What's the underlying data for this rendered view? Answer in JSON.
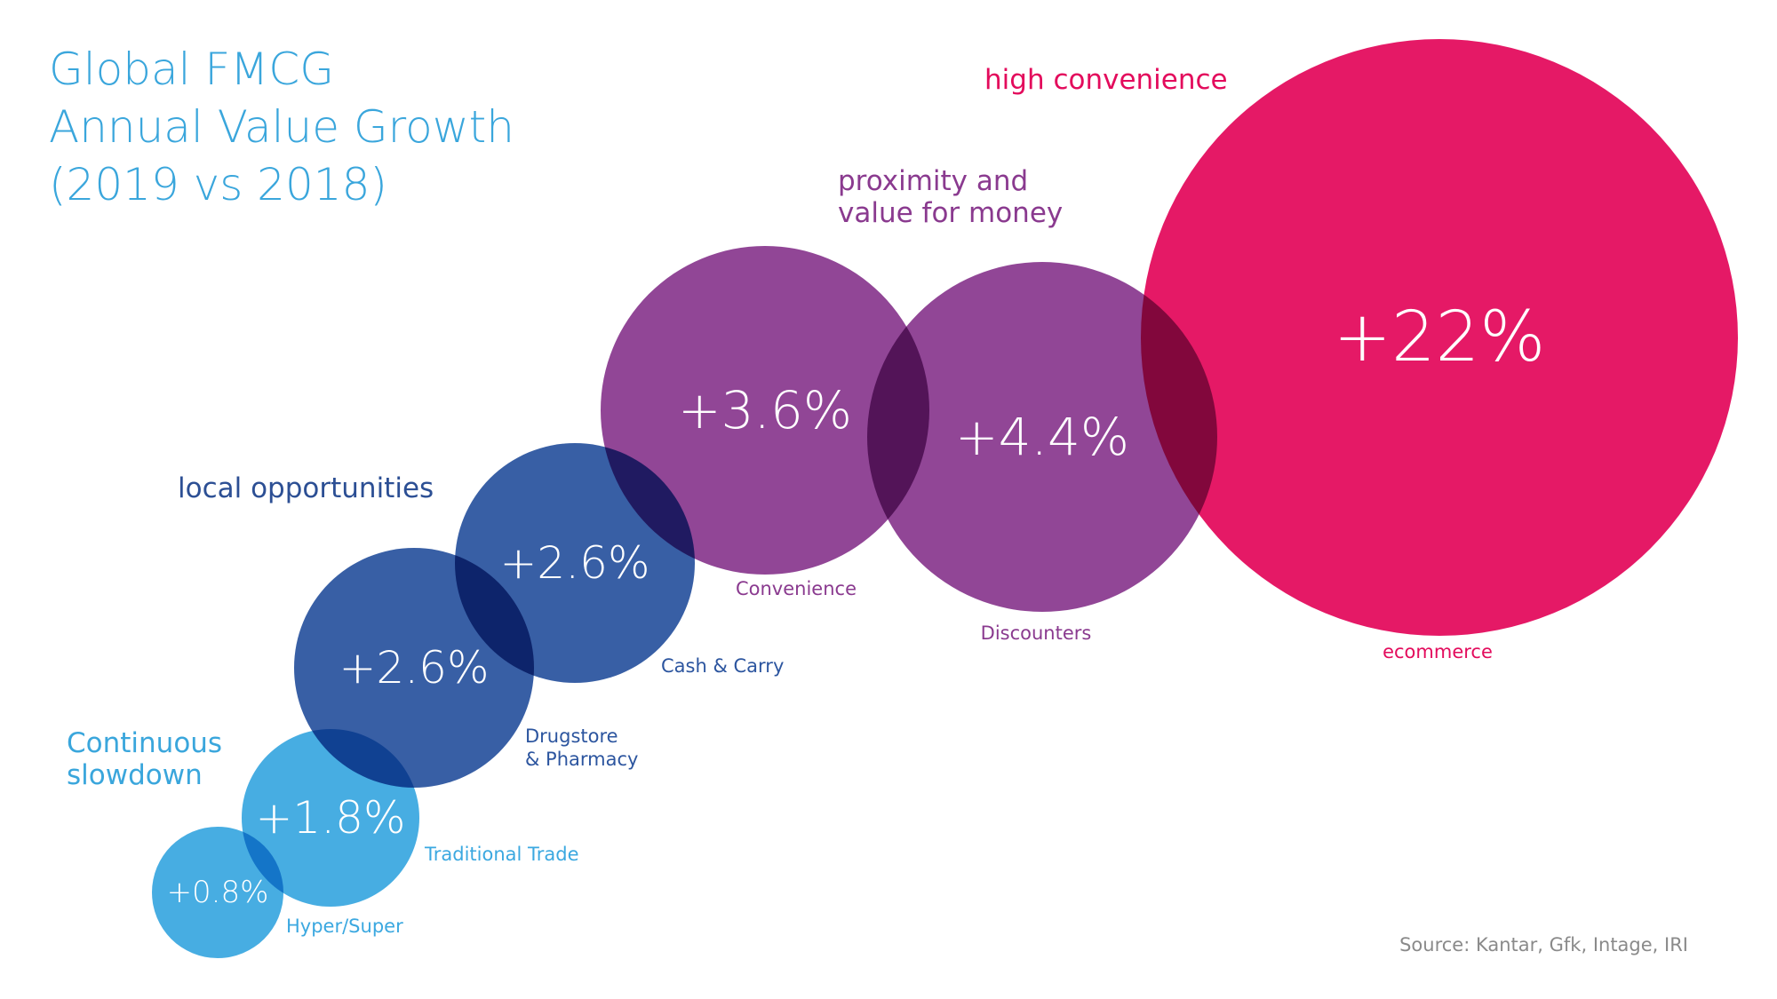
{
  "chart_data": {
    "type": "bubble",
    "title_lines": [
      "Global FMCG",
      "Annual Value Growth",
      "(2019 vs 2018)"
    ],
    "unit": "%",
    "series": [
      {
        "channel": "Hyper/Super",
        "growth": 0.8,
        "label": "+0.8%",
        "group": "Continuous slowdown",
        "color": "#3ba8e0"
      },
      {
        "channel": "Traditional Trade",
        "growth": 1.8,
        "label": "+1.8%",
        "group": "Continuous slowdown",
        "color": "#3ba8e0"
      },
      {
        "channel": "Drugstore & Pharmacy",
        "channel_lines": [
          "Drugstore",
          "& Pharmacy"
        ],
        "growth": 2.6,
        "label": "+2.6%",
        "group": "local opportunities",
        "color": "#2c559f"
      },
      {
        "channel": "Cash & Carry",
        "growth": 2.6,
        "label": "+2.6%",
        "group": "local opportunities",
        "color": "#2c559f"
      },
      {
        "channel": "Convenience",
        "growth": 3.6,
        "label": "+3.6%",
        "group": "proximity and value for money",
        "color": "#8a3a8f"
      },
      {
        "channel": "Discounters",
        "growth": 4.4,
        "label": "+4.4%",
        "group": "proximity and value for money",
        "color": "#8a3a8f"
      },
      {
        "channel": "ecommerce",
        "growth": 22,
        "label": "+22%",
        "group": "high convenience",
        "color": "#e30b5c"
      }
    ],
    "groups": [
      {
        "name": "Continuous slowdown",
        "lines": [
          "Continuous",
          "slowdown"
        ],
        "color": "#3aa6dc"
      },
      {
        "name": "local opportunities",
        "lines": [
          "local opportunities"
        ],
        "color": "#2c4f94"
      },
      {
        "name": "proximity and value for money",
        "lines": [
          "proximity and",
          "value for money"
        ],
        "color": "#8a3a8f"
      },
      {
        "name": "high convenience",
        "lines": [
          "high convenience"
        ],
        "color": "#e30b5c"
      }
    ],
    "source": "Source: Kantar, Gfk, Intage, IRI"
  }
}
